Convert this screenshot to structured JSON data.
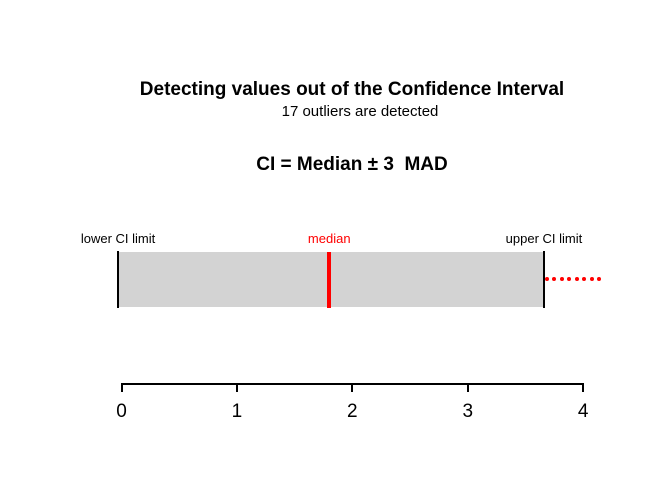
{
  "chart_data": {
    "type": "interval",
    "title": "Detecting values out of the Confidence Interval",
    "subtitle": "CI = Median ± 3  MAD",
    "annotation": "17 outliers are detected",
    "outliers_detected": 17,
    "labels": {
      "lower": "lower CI limit",
      "median": "median",
      "upper": "upper CI limit"
    },
    "xlabel": "",
    "ylabel": "",
    "axis": {
      "min": 0,
      "max": 4,
      "ticks": [
        0,
        1,
        2,
        3,
        4
      ],
      "tick_labels": [
        "0",
        "1",
        "2",
        "3",
        "4"
      ]
    },
    "lower_ci": -0.03,
    "median": 1.8,
    "upper_ci": 3.66,
    "outlier_dots_x": [
      3.69,
      3.75,
      3.82,
      3.88,
      3.95,
      4.01,
      4.08,
      4.14
    ],
    "grid": false,
    "legend": "none",
    "colors": {
      "bar_fill": "#d3d3d3",
      "ci_line": "#000000",
      "median_color": "#ff0000",
      "outlier_color": "#ff0000",
      "background": "#ffffff",
      "text": "#000000"
    }
  }
}
